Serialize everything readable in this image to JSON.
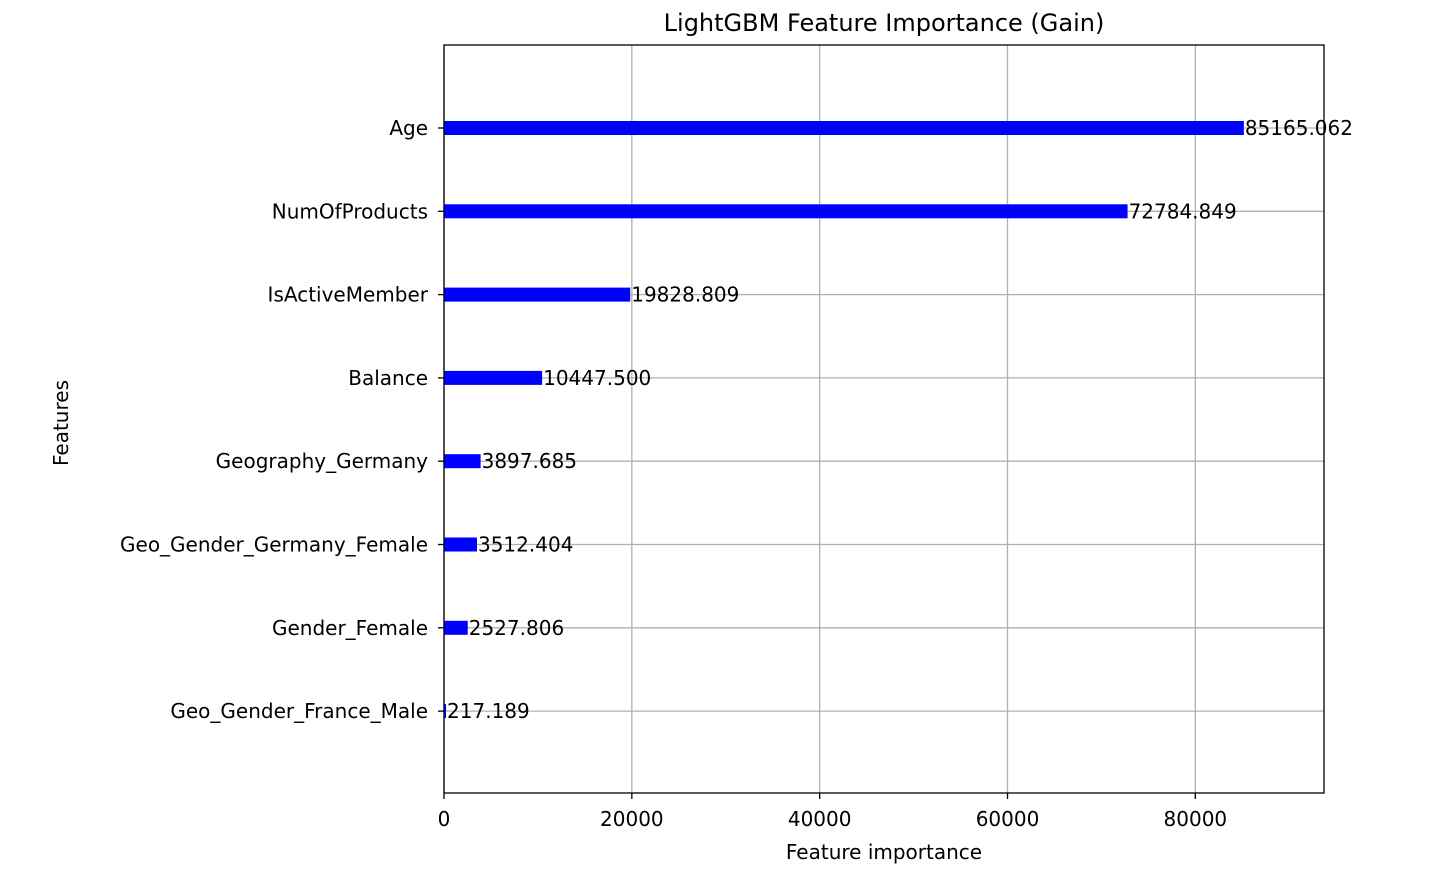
{
  "chart_data": {
    "type": "bar",
    "orientation": "horizontal",
    "title": "LightGBM Feature Importance (Gain)",
    "xlabel": "Feature importance",
    "ylabel": "Features",
    "categories": [
      "Age",
      "NumOfProducts",
      "IsActiveMember",
      "Balance",
      "Geography_Germany",
      "Geo_Gender_Germany_Female",
      "Gender_Female",
      "Geo_Gender_France_Male"
    ],
    "values": [
      85165.062,
      72784.849,
      19828.809,
      10447.5,
      3897.685,
      3512.404,
      2527.806,
      217.189
    ],
    "value_labels": [
      "85165.062",
      "72784.849",
      "19828.809",
      "10447.500",
      "3897.685",
      "3512.404",
      "2527.806",
      "217.189"
    ],
    "xlim": [
      0,
      93700
    ],
    "xticks": [
      0,
      20000,
      40000,
      60000,
      80000
    ],
    "xtick_labels": [
      "0",
      "20000",
      "40000",
      "60000",
      "80000"
    ],
    "grid": true,
    "bar_color": "#0000ff",
    "grid_color": "#b0b0b0"
  }
}
